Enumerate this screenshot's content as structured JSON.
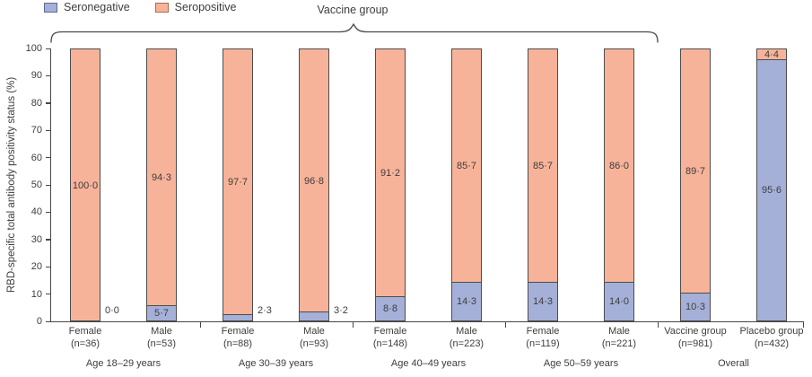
{
  "legend": {
    "items": [
      {
        "label": "Seronegative",
        "fill": "#a5b0d8",
        "border": "#5d6b91"
      },
      {
        "label": "Seropositive",
        "fill": "#f7b399",
        "border": "#ad6b52"
      }
    ]
  },
  "annotation": {
    "vaccine_group_label": "Vaccine group"
  },
  "chart_data": {
    "type": "bar",
    "stacked": true,
    "title": "",
    "xlabel": "",
    "ylabel": "RBD-specific total antibody positivity status (%)",
    "ylim": [
      0,
      100
    ],
    "y_ticks": [
      0,
      10,
      20,
      30,
      40,
      50,
      60,
      70,
      80,
      90,
      100
    ],
    "grid": false,
    "legend_position": "top-left",
    "series_order": [
      "Seronegative",
      "Seropositive"
    ],
    "colors": {
      "seronegative_fill": "#a5b0d8",
      "seropositive_fill": "#f7b399",
      "bar_border": "#4d4d4d",
      "axis": "#474747",
      "text": "#3d3d3d"
    },
    "groups": [
      {
        "label": "Age 18–29 years",
        "bars": [
          {
            "category": "Female",
            "n": "(n=36)",
            "seronegative": 0.0,
            "seropositive": 100.0,
            "seronegative_label": "0·0",
            "seropositive_label": "100·0",
            "seronegative_label_outside": true
          },
          {
            "category": "Male",
            "n": "(n=53)",
            "seronegative": 5.7,
            "seropositive": 94.3,
            "seronegative_label": "5·7",
            "seropositive_label": "94·3",
            "seronegative_label_outside": false
          }
        ]
      },
      {
        "label": "Age 30–39 years",
        "bars": [
          {
            "category": "Female",
            "n": "(n=88)",
            "seronegative": 2.3,
            "seropositive": 97.7,
            "seronegative_label": "2·3",
            "seropositive_label": "97·7",
            "seronegative_label_outside": true
          },
          {
            "category": "Male",
            "n": "(n=93)",
            "seronegative": 3.2,
            "seropositive": 96.8,
            "seronegative_label": "3·2",
            "seropositive_label": "96·8",
            "seronegative_label_outside": true
          }
        ]
      },
      {
        "label": "Age 40–49 years",
        "bars": [
          {
            "category": "Female",
            "n": "(n=148)",
            "seronegative": 8.8,
            "seropositive": 91.2,
            "seronegative_label": "8·8",
            "seropositive_label": "91·2",
            "seronegative_label_outside": false
          },
          {
            "category": "Male",
            "n": "(n=223)",
            "seronegative": 14.3,
            "seropositive": 85.7,
            "seronegative_label": "14·3",
            "seropositive_label": "85·7",
            "seronegative_label_outside": false
          }
        ]
      },
      {
        "label": "Age 50–59 years",
        "bars": [
          {
            "category": "Female",
            "n": "(n=119)",
            "seronegative": 14.3,
            "seropositive": 85.7,
            "seronegative_label": "14·3",
            "seropositive_label": "85·7",
            "seronegative_label_outside": false
          },
          {
            "category": "Male",
            "n": "(n=221)",
            "seronegative": 14.0,
            "seropositive": 86.0,
            "seronegative_label": "14·0",
            "seropositive_label": "86·0",
            "seronegative_label_outside": false
          }
        ]
      },
      {
        "label": "Overall",
        "bars": [
          {
            "category": "Vaccine group",
            "n": "(n=981)",
            "seronegative": 10.3,
            "seropositive": 89.7,
            "seronegative_label": "10·3",
            "seropositive_label": "89·7",
            "seronegative_label_outside": false
          },
          {
            "category": "Placebo group",
            "n": "(n=432)",
            "seronegative": 95.6,
            "seropositive": 4.4,
            "seronegative_label": "95·6",
            "seropositive_label": "4·4",
            "seronegative_label_outside": false
          }
        ]
      }
    ]
  }
}
